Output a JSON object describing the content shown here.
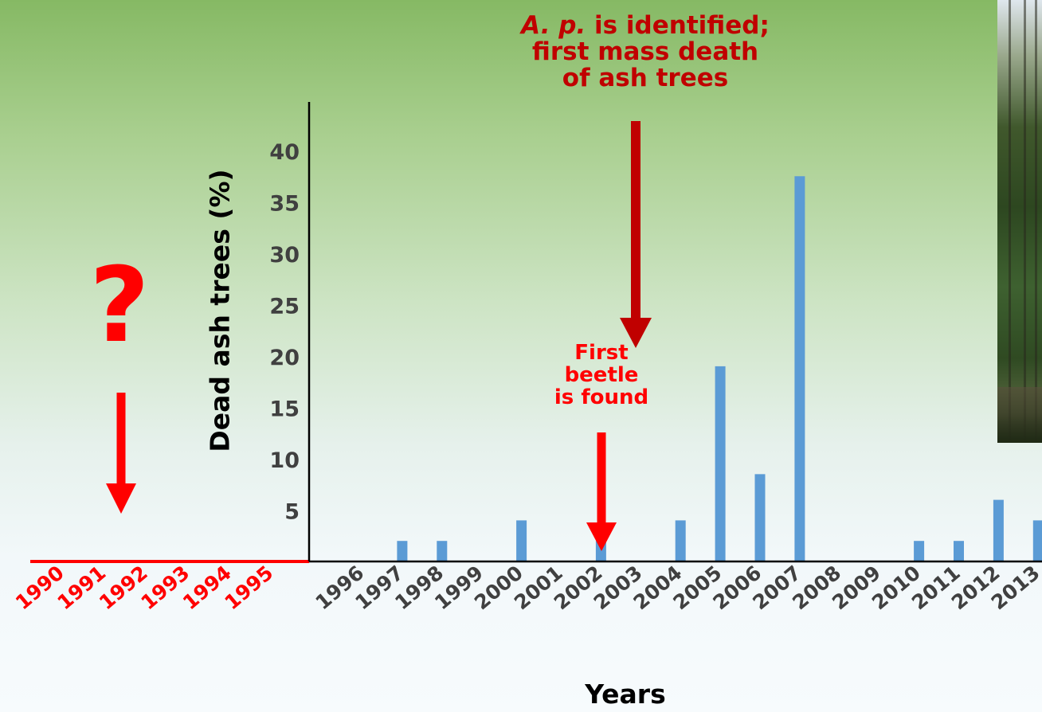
{
  "chart_data": {
    "type": "bar",
    "categories": [
      "1996",
      "1997",
      "1998",
      "1999",
      "2000",
      "2001",
      "2002",
      "2003",
      "2004",
      "2005",
      "2006",
      "2007",
      "2008",
      "2009",
      "2010",
      "2011",
      "2012",
      "2013"
    ],
    "values": [
      0,
      2,
      2,
      0,
      4,
      0,
      2,
      0,
      4,
      19,
      8.5,
      37.5,
      0,
      0,
      2,
      2,
      6,
      4
    ],
    "extended_categories": [
      "1990",
      "1991",
      "1992",
      "1993",
      "1994",
      "1995"
    ],
    "xlabel": "Years",
    "ylabel": "Dead ash trees (%)",
    "yticks": [
      5,
      10,
      15,
      20,
      25,
      30,
      35,
      40
    ],
    "ylim": [
      0,
      42
    ],
    "grid": false,
    "bar_color": "#5b9bd5",
    "extended_color": "#ff0000",
    "annotations": [
      {
        "id": "ap",
        "text_italic": "A. p.",
        "text_rest": " is identified;",
        "line2": "first mass death",
        "line3": "of ash trees",
        "x": "2004",
        "color": "#c00000"
      },
      {
        "id": "beetle",
        "lines": [
          "First",
          "beetle",
          "is found"
        ],
        "x": "2003",
        "color": "#ff0000"
      },
      {
        "id": "question",
        "text": "?",
        "x": "1992",
        "color": "#ff0000"
      }
    ]
  }
}
